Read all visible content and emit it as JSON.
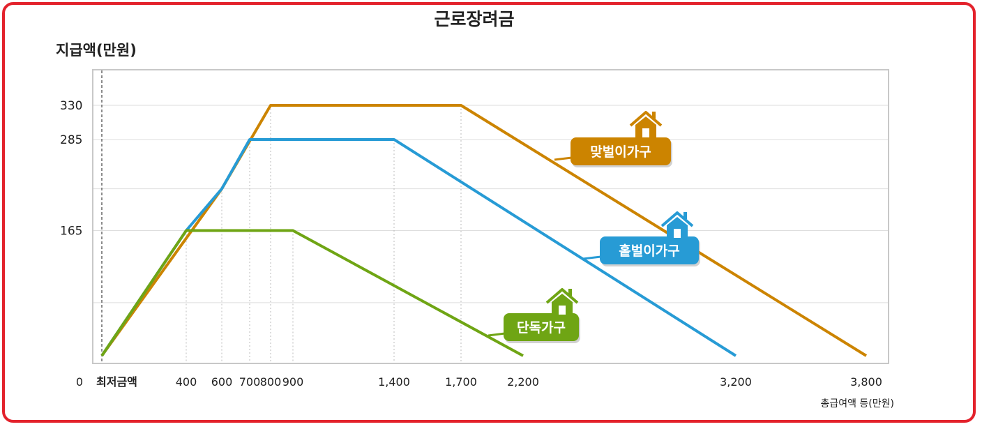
{
  "chart_data": {
    "type": "line",
    "title": "근로장려금",
    "ylabel": "지급액(만원)",
    "xlabel": "총급여액 등(만원)",
    "x_ticks": [
      "0",
      "최저금액",
      "400",
      "600",
      "700",
      "800",
      "900",
      "1,400",
      "1,700",
      "2,200",
      "3,200",
      "3,800"
    ],
    "y_ticks": [
      "330",
      "285",
      "165"
    ],
    "ylim": [
      0,
      370
    ],
    "grid": true,
    "colors": {
      "frame": "#e3222c",
      "single": "#6fa514",
      "single_earner": "#279bd5",
      "dual_earner": "#cc8400"
    },
    "series": [
      {
        "key": "dual",
        "name": "맞벌이가구",
        "color": "#cc8400",
        "points": [
          {
            "x": "최저금액",
            "y": 0
          },
          {
            "x": "600",
            "y": 220
          },
          {
            "x": "800",
            "y": 330
          },
          {
            "x": "1,700",
            "y": 330
          },
          {
            "x": "3,800",
            "y": 0
          }
        ]
      },
      {
        "key": "single_earner",
        "name": "홑벌이가구",
        "color": "#279bd5",
        "points": [
          {
            "x": "최저금액",
            "y": 0
          },
          {
            "x": "400",
            "y": 165
          },
          {
            "x": "600",
            "y": 220
          },
          {
            "x": "700",
            "y": 285
          },
          {
            "x": "1,400",
            "y": 285
          },
          {
            "x": "3,200",
            "y": 0
          }
        ]
      },
      {
        "key": "single",
        "name": "단독가구",
        "color": "#6fa514",
        "points": [
          {
            "x": "최저금액",
            "y": 0
          },
          {
            "x": "400",
            "y": 165
          },
          {
            "x": "900",
            "y": 165
          },
          {
            "x": "2,200",
            "y": 0
          }
        ]
      }
    ]
  }
}
